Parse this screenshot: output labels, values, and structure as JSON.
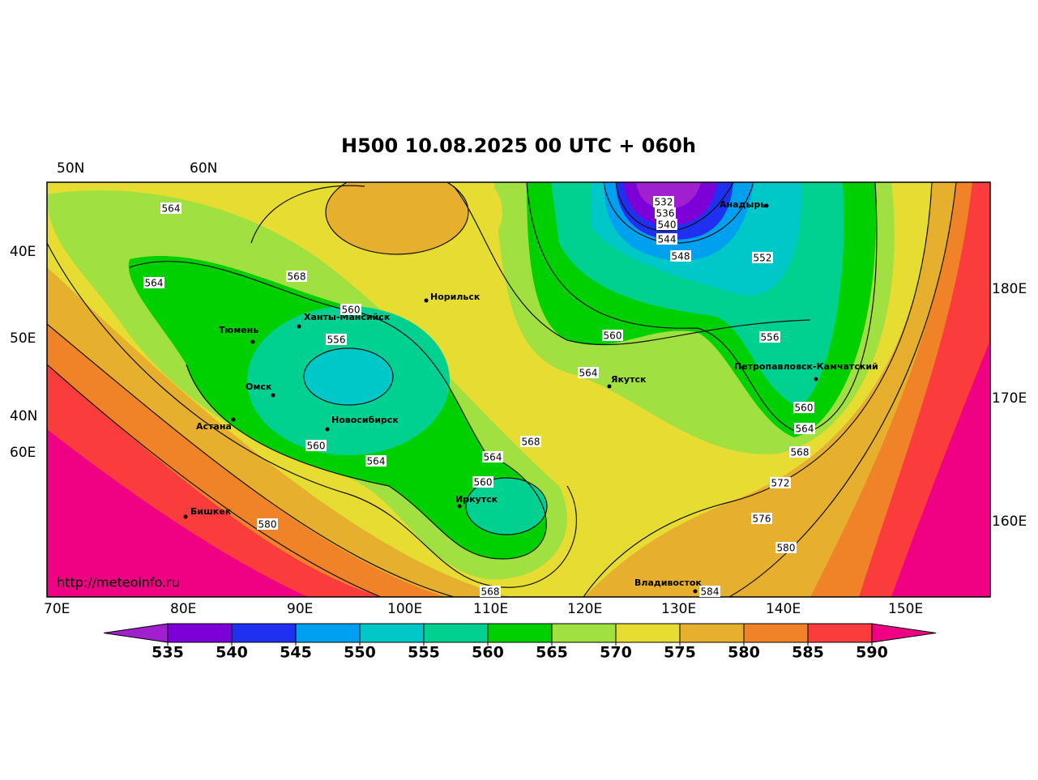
{
  "header": {
    "title": "H500  10.08.2025 00 UTC + 060h"
  },
  "coordinate_labels": [
    "50N",
    "60N",
    "40E",
    "50E",
    "40N",
    "60E",
    "180E",
    "170E",
    "160E",
    "70E",
    "80E",
    "90E",
    "100E",
    "110E",
    "120E",
    "130E",
    "140E",
    "150E"
  ],
  "cities": [
    "Анадырь",
    "Норильск",
    "Ханты-Мансийск",
    "Тюмень",
    "Омск",
    "Астана",
    "Новосибирск",
    "Якутск",
    "Петропавловск-Камчатский",
    "Иркутск",
    "Бишкек",
    "Владивосток"
  ],
  "contour_labels": [
    564,
    564,
    568,
    560,
    556,
    560,
    564,
    564,
    560,
    568,
    580,
    568,
    560,
    564,
    532,
    536,
    540,
    544,
    548,
    552,
    556,
    560,
    564,
    568,
    572,
    576,
    580,
    584
  ],
  "source": "http://meteoinfo.ru",
  "colorbar": {
    "ticks": [
      535,
      540,
      545,
      550,
      555,
      560,
      565,
      570,
      575,
      580,
      585,
      590
    ],
    "colors": [
      "#a020d0",
      "#7d00d8",
      "#2030f0",
      "#00a0f0",
      "#00c8c8",
      "#00d090",
      "#00d000",
      "#a0e040",
      "#e6dc32",
      "#e6af2d",
      "#f08228",
      "#fa3c3c",
      "#f00082"
    ]
  }
}
